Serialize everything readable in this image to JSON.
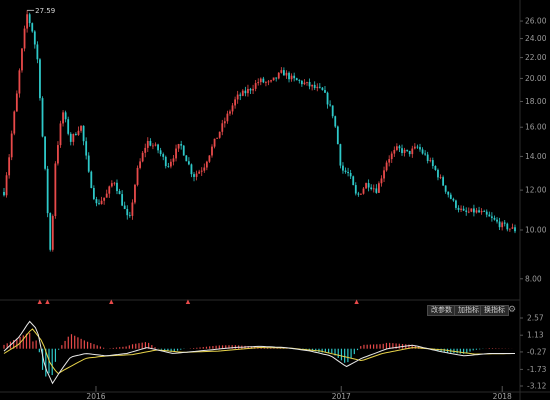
{
  "theme": {
    "background": "#000000",
    "up_color": "#e84a4a",
    "down_color": "#2ec9c9",
    "dif_color": "#e8e8e8",
    "dea_color": "#e8d44a",
    "axis_text": "#9a9a9a"
  },
  "indicator_buttons": {
    "settings": "改参数",
    "add": "加指标",
    "switch": "换指标"
  },
  "settings_icon": "gear-icon",
  "chart_data": [
    {
      "type": "candlestick",
      "title": "",
      "y_axis": {
        "side": "right",
        "scale": "log",
        "ticks": [
          "26.00",
          "24.00",
          "22.00",
          "20.00",
          "18.00",
          "16.00",
          "14.00",
          "12.00",
          "10.00",
          "8.00"
        ],
        "range": [
          7.6,
          27.6
        ]
      },
      "x_axis": {
        "ticks": [
          "2016",
          "2017",
          "2018"
        ],
        "range": [
          "2015-06",
          "2018-01"
        ]
      },
      "peak_label": "27.59",
      "grid": false,
      "key_points": [
        {
          "t": 0.0,
          "p": 11.9
        },
        {
          "t": 0.01,
          "p": 14.0
        },
        {
          "t": 0.025,
          "p": 18.5
        },
        {
          "t": 0.045,
          "p": 26.8
        },
        {
          "t": 0.055,
          "p": 25.0
        },
        {
          "t": 0.065,
          "p": 22.0
        },
        {
          "t": 0.075,
          "p": 15.5
        },
        {
          "t": 0.085,
          "p": 11.0
        },
        {
          "t": 0.092,
          "p": 8.6
        },
        {
          "t": 0.1,
          "p": 13.5
        },
        {
          "t": 0.115,
          "p": 17.2
        },
        {
          "t": 0.13,
          "p": 15.0
        },
        {
          "t": 0.15,
          "p": 16.2
        },
        {
          "t": 0.165,
          "p": 13.0
        },
        {
          "t": 0.18,
          "p": 11.2
        },
        {
          "t": 0.2,
          "p": 11.7
        },
        {
          "t": 0.215,
          "p": 12.6
        },
        {
          "t": 0.23,
          "p": 11.4
        },
        {
          "t": 0.245,
          "p": 10.3
        },
        {
          "t": 0.26,
          "p": 13.0
        },
        {
          "t": 0.28,
          "p": 15.0
        },
        {
          "t": 0.3,
          "p": 14.5
        },
        {
          "t": 0.32,
          "p": 13.4
        },
        {
          "t": 0.345,
          "p": 14.8
        },
        {
          "t": 0.37,
          "p": 12.8
        },
        {
          "t": 0.39,
          "p": 13.3
        },
        {
          "t": 0.41,
          "p": 14.8
        },
        {
          "t": 0.43,
          "p": 16.3
        },
        {
          "t": 0.455,
          "p": 18.3
        },
        {
          "t": 0.48,
          "p": 19.0
        },
        {
          "t": 0.5,
          "p": 19.8
        },
        {
          "t": 0.52,
          "p": 19.5
        },
        {
          "t": 0.545,
          "p": 20.6
        },
        {
          "t": 0.565,
          "p": 19.9
        },
        {
          "t": 0.585,
          "p": 19.6
        },
        {
          "t": 0.605,
          "p": 19.2
        },
        {
          "t": 0.625,
          "p": 18.8
        },
        {
          "t": 0.645,
          "p": 16.8
        },
        {
          "t": 0.66,
          "p": 13.2
        },
        {
          "t": 0.675,
          "p": 12.9
        },
        {
          "t": 0.69,
          "p": 11.6
        },
        {
          "t": 0.71,
          "p": 12.4
        },
        {
          "t": 0.73,
          "p": 12.0
        },
        {
          "t": 0.75,
          "p": 13.8
        },
        {
          "t": 0.77,
          "p": 14.5
        },
        {
          "t": 0.79,
          "p": 14.2
        },
        {
          "t": 0.81,
          "p": 14.6
        },
        {
          "t": 0.825,
          "p": 14.0
        },
        {
          "t": 0.845,
          "p": 13.1
        },
        {
          "t": 0.865,
          "p": 12.0
        },
        {
          "t": 0.88,
          "p": 11.3
        },
        {
          "t": 0.9,
          "p": 10.8
        },
        {
          "t": 0.92,
          "p": 10.9
        },
        {
          "t": 0.935,
          "p": 10.8
        },
        {
          "t": 0.955,
          "p": 10.5
        },
        {
          "t": 0.975,
          "p": 10.2
        },
        {
          "t": 1.0,
          "p": 10.0
        }
      ],
      "signal_markers_t": [
        0.07,
        0.085,
        0.21,
        0.36,
        0.69
      ]
    },
    {
      "type": "macd",
      "y_axis": {
        "side": "right",
        "ticks": [
          "2.57",
          "1.13",
          "-0.27",
          "-1.73",
          "-3.12"
        ],
        "values": [
          2.57,
          1.13,
          -0.27,
          -1.73,
          -3.12
        ],
        "range": [
          -3.12,
          2.57
        ]
      },
      "series": [
        {
          "key": "dif",
          "values_t": [
            {
              "t": 0.0,
              "v": -0.2
            },
            {
              "t": 0.03,
              "v": 1.0
            },
            {
              "t": 0.05,
              "v": 2.3
            },
            {
              "t": 0.065,
              "v": 1.6
            },
            {
              "t": 0.08,
              "v": -1.5
            },
            {
              "t": 0.095,
              "v": -2.9
            },
            {
              "t": 0.11,
              "v": -1.9
            },
            {
              "t": 0.13,
              "v": -0.7
            },
            {
              "t": 0.16,
              "v": -0.4
            },
            {
              "t": 0.2,
              "v": -0.6
            },
            {
              "t": 0.24,
              "v": -0.4
            },
            {
              "t": 0.28,
              "v": 0.1
            },
            {
              "t": 0.33,
              "v": -0.4
            },
            {
              "t": 0.38,
              "v": -0.2
            },
            {
              "t": 0.45,
              "v": 0.1
            },
            {
              "t": 0.5,
              "v": 0.2
            },
            {
              "t": 0.55,
              "v": 0.1
            },
            {
              "t": 0.6,
              "v": -0.2
            },
            {
              "t": 0.64,
              "v": -0.6
            },
            {
              "t": 0.67,
              "v": -1.5
            },
            {
              "t": 0.7,
              "v": -0.8
            },
            {
              "t": 0.75,
              "v": 0.0
            },
            {
              "t": 0.8,
              "v": 0.3
            },
            {
              "t": 0.85,
              "v": -0.2
            },
            {
              "t": 0.9,
              "v": -0.6
            },
            {
              "t": 0.95,
              "v": -0.4
            },
            {
              "t": 1.0,
              "v": -0.4
            }
          ]
        },
        {
          "key": "dea",
          "values_t": [
            {
              "t": 0.0,
              "v": -0.4
            },
            {
              "t": 0.03,
              "v": 0.4
            },
            {
              "t": 0.055,
              "v": 1.7
            },
            {
              "t": 0.075,
              "v": 0.6
            },
            {
              "t": 0.09,
              "v": -1.2
            },
            {
              "t": 0.105,
              "v": -2.1
            },
            {
              "t": 0.125,
              "v": -1.6
            },
            {
              "t": 0.16,
              "v": -0.8
            },
            {
              "t": 0.2,
              "v": -0.6
            },
            {
              "t": 0.25,
              "v": -0.5
            },
            {
              "t": 0.3,
              "v": -0.1
            },
            {
              "t": 0.35,
              "v": -0.3
            },
            {
              "t": 0.42,
              "v": -0.2
            },
            {
              "t": 0.5,
              "v": 0.1
            },
            {
              "t": 0.56,
              "v": 0.05
            },
            {
              "t": 0.62,
              "v": -0.2
            },
            {
              "t": 0.66,
              "v": -0.6
            },
            {
              "t": 0.7,
              "v": -1.0
            },
            {
              "t": 0.74,
              "v": -0.4
            },
            {
              "t": 0.8,
              "v": 0.1
            },
            {
              "t": 0.86,
              "v": -0.1
            },
            {
              "t": 0.92,
              "v": -0.45
            },
            {
              "t": 1.0,
              "v": -0.4
            }
          ]
        }
      ]
    }
  ]
}
